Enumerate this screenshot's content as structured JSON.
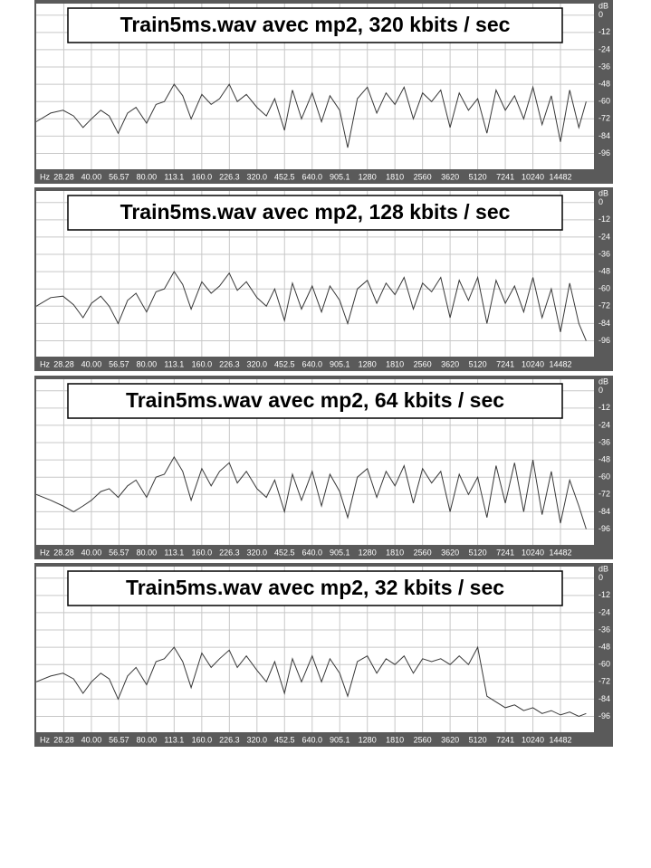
{
  "chart_data": [
    {
      "type": "line",
      "title": "Train5ms.wav avec mp2, 320 kbits / sec",
      "xlabel": "Hz",
      "ylabel": "dB",
      "color": "#383838",
      "log_x": true,
      "grid": true,
      "xlim": [
        20,
        22050
      ],
      "ylim": [
        -107,
        8
      ],
      "xticks": [
        28.28,
        {
          "value": 40,
          "label": "40.00"
        },
        56.57,
        {
          "value": 80,
          "label": "80.00"
        },
        113.1,
        {
          "value": 160,
          "label": "160.0"
        },
        226.3,
        {
          "value": 320,
          "label": "320.0"
        },
        452.5,
        {
          "value": 640,
          "label": "640.0"
        },
        905.1,
        1280,
        1810,
        2560,
        3620,
        5120,
        7241,
        10240,
        14482
      ],
      "yticks": [
        0,
        -12,
        -24,
        -36,
        -48,
        -60,
        -72,
        -84,
        -96
      ],
      "x": [
        20,
        24,
        28,
        32,
        36,
        40,
        45,
        50,
        56,
        63,
        70,
        80,
        90,
        100,
        113,
        126,
        140,
        160,
        180,
        200,
        226,
        250,
        280,
        320,
        360,
        400,
        452,
        500,
        560,
        640,
        720,
        800,
        905,
        1000,
        1130,
        1280,
        1440,
        1620,
        1810,
        2030,
        2280,
        2560,
        2870,
        3220,
        3620,
        4060,
        4560,
        5120,
        5750,
        6450,
        7241,
        8130,
        9120,
        10240,
        11490,
        12900,
        14482,
        16250,
        18240,
        20000
      ],
      "values": [
        -74,
        -68,
        -66,
        -70,
        -78,
        -72,
        -66,
        -70,
        -82,
        -68,
        -64,
        -75,
        -62,
        -60,
        -48,
        -56,
        -72,
        -55,
        -62,
        -58,
        -48,
        -60,
        -55,
        -64,
        -70,
        -58,
        -80,
        -52,
        -72,
        -54,
        -74,
        -56,
        -66,
        -92,
        -58,
        -50,
        -68,
        -54,
        -62,
        -50,
        -72,
        -54,
        -60,
        -52,
        -78,
        -54,
        -66,
        -58,
        -82,
        -52,
        -66,
        -56,
        -72,
        -50,
        -76,
        -56,
        -88,
        -52,
        -78,
        -60
      ]
    },
    {
      "type": "line",
      "title": "Train5ms.wav avec mp2, 128 kbits / sec",
      "xlabel": "Hz",
      "ylabel": "dB",
      "color": "#383838",
      "log_x": true,
      "grid": true,
      "xlim": [
        20,
        22050
      ],
      "ylim": [
        -107,
        8
      ],
      "xticks": [
        28.28,
        {
          "value": 40,
          "label": "40.00"
        },
        56.57,
        {
          "value": 80,
          "label": "80.00"
        },
        113.1,
        {
          "value": 160,
          "label": "160.0"
        },
        226.3,
        {
          "value": 320,
          "label": "320.0"
        },
        452.5,
        {
          "value": 640,
          "label": "640.0"
        },
        905.1,
        1280,
        1810,
        2560,
        3620,
        5120,
        7241,
        10240,
        14482
      ],
      "yticks": [
        0,
        -12,
        -24,
        -36,
        -48,
        -60,
        -72,
        -84,
        -96
      ],
      "x": [
        20,
        24,
        28,
        32,
        36,
        40,
        45,
        50,
        56,
        63,
        70,
        80,
        90,
        100,
        113,
        126,
        140,
        160,
        180,
        200,
        226,
        250,
        280,
        320,
        360,
        400,
        452,
        500,
        560,
        640,
        720,
        800,
        905,
        1000,
        1130,
        1280,
        1440,
        1620,
        1810,
        2030,
        2280,
        2560,
        2870,
        3220,
        3620,
        4060,
        4560,
        5120,
        5750,
        6450,
        7241,
        8130,
        9120,
        10240,
        11490,
        12900,
        14482,
        16250,
        18240,
        20000
      ],
      "values": [
        -72,
        -66,
        -65,
        -71,
        -80,
        -70,
        -65,
        -72,
        -84,
        -68,
        -63,
        -76,
        -62,
        -60,
        -48,
        -57,
        -74,
        -55,
        -63,
        -58,
        -49,
        -61,
        -55,
        -66,
        -72,
        -60,
        -82,
        -56,
        -74,
        -58,
        -76,
        -58,
        -68,
        -84,
        -60,
        -54,
        -70,
        -56,
        -64,
        -52,
        -74,
        -56,
        -62,
        -52,
        -80,
        -54,
        -68,
        -52,
        -84,
        -54,
        -70,
        -58,
        -76,
        -52,
        -80,
        -60,
        -90,
        -56,
        -84,
        -96
      ]
    },
    {
      "type": "line",
      "title": "Train5ms.wav avec mp2, 64 kbits / sec",
      "xlabel": "Hz",
      "ylabel": "dB",
      "color": "#383838",
      "log_x": true,
      "grid": true,
      "xlim": [
        20,
        22050
      ],
      "ylim": [
        -107,
        8
      ],
      "xticks": [
        28.28,
        {
          "value": 40,
          "label": "40.00"
        },
        56.57,
        {
          "value": 80,
          "label": "80.00"
        },
        113.1,
        {
          "value": 160,
          "label": "160.0"
        },
        226.3,
        {
          "value": 320,
          "label": "320.0"
        },
        452.5,
        {
          "value": 640,
          "label": "640.0"
        },
        905.1,
        1280,
        1810,
        2560,
        3620,
        5120,
        7241,
        10240,
        14482
      ],
      "yticks": [
        0,
        -12,
        -24,
        -36,
        -48,
        -60,
        -72,
        -84,
        -96
      ],
      "x": [
        20,
        24,
        28,
        32,
        36,
        40,
        45,
        50,
        56,
        63,
        70,
        80,
        90,
        100,
        113,
        126,
        140,
        160,
        180,
        200,
        226,
        250,
        280,
        320,
        360,
        400,
        452,
        500,
        560,
        640,
        720,
        800,
        905,
        1000,
        1130,
        1280,
        1440,
        1620,
        1810,
        2030,
        2280,
        2560,
        2870,
        3220,
        3620,
        4060,
        4560,
        5120,
        5750,
        6450,
        7241,
        8130,
        9120,
        10240,
        11490,
        12900,
        14482,
        16250,
        18240,
        20000
      ],
      "values": [
        -72,
        -76,
        -80,
        -84,
        -80,
        -76,
        -70,
        -68,
        -74,
        -66,
        -62,
        -74,
        -60,
        -58,
        -46,
        -56,
        -76,
        -54,
        -66,
        -56,
        -50,
        -64,
        -56,
        -68,
        -74,
        -62,
        -84,
        -58,
        -76,
        -56,
        -80,
        -58,
        -70,
        -88,
        -60,
        -54,
        -74,
        -56,
        -66,
        -52,
        -78,
        -54,
        -64,
        -56,
        -84,
        -58,
        -72,
        -60,
        -88,
        -52,
        -78,
        -50,
        -84,
        -48,
        -86,
        -56,
        -92,
        -62,
        -80,
        -96
      ]
    },
    {
      "type": "line",
      "title": "Train5ms.wav avec mp2, 32 kbits / sec",
      "xlabel": "Hz",
      "ylabel": "dB",
      "color": "#383838",
      "log_x": true,
      "grid": true,
      "xlim": [
        20,
        22050
      ],
      "ylim": [
        -107,
        8
      ],
      "xticks": [
        28.28,
        {
          "value": 40,
          "label": "40.00"
        },
        56.57,
        {
          "value": 80,
          "label": "80.00"
        },
        113.1,
        {
          "value": 160,
          "label": "160.0"
        },
        226.3,
        {
          "value": 320,
          "label": "320.0"
        },
        452.5,
        {
          "value": 640,
          "label": "640.0"
        },
        905.1,
        1280,
        1810,
        2560,
        3620,
        5120,
        7241,
        10240,
        14482
      ],
      "yticks": [
        0,
        -12,
        -24,
        -36,
        -48,
        -60,
        -72,
        -84,
        -96
      ],
      "x": [
        20,
        24,
        28,
        32,
        36,
        40,
        45,
        50,
        56,
        63,
        70,
        80,
        90,
        100,
        113,
        126,
        140,
        160,
        180,
        200,
        226,
        250,
        280,
        320,
        360,
        400,
        452,
        500,
        560,
        640,
        720,
        800,
        905,
        1000,
        1130,
        1280,
        1440,
        1620,
        1810,
        2030,
        2280,
        2560,
        2870,
        3220,
        3620,
        4060,
        4560,
        5120,
        5750,
        6450,
        7241,
        8130,
        9120,
        10240,
        11490,
        12900,
        14482,
        16250,
        18240,
        20000
      ],
      "values": [
        -72,
        -68,
        -66,
        -70,
        -80,
        -72,
        -66,
        -70,
        -84,
        -68,
        -62,
        -74,
        -58,
        -56,
        -48,
        -58,
        -76,
        -52,
        -62,
        -56,
        -50,
        -62,
        -54,
        -64,
        -72,
        -58,
        -80,
        -56,
        -72,
        -54,
        -72,
        -56,
        -66,
        -82,
        -58,
        -54,
        -66,
        -56,
        -60,
        -54,
        -66,
        -56,
        -58,
        -56,
        -60,
        -54,
        -60,
        -48,
        -82,
        -86,
        -90,
        -88,
        -92,
        -90,
        -94,
        -92,
        -95,
        -93,
        -96,
        -94
      ]
    }
  ]
}
